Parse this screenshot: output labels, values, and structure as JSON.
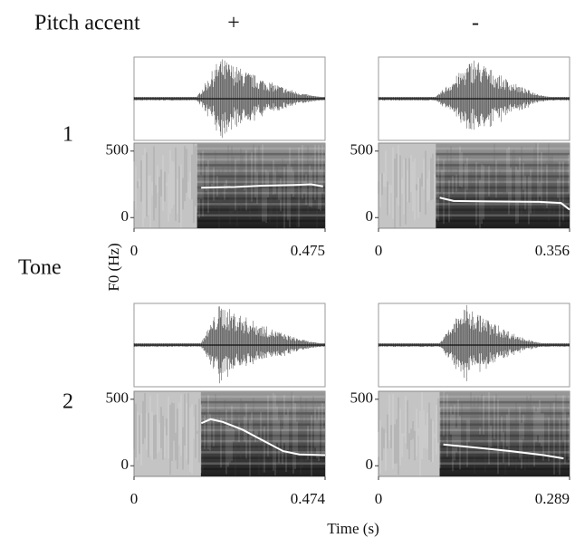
{
  "figure": {
    "column_header": "Pitch accent",
    "columns": [
      "+",
      "-"
    ],
    "row_header": "Tone",
    "rows": [
      "1",
      "2"
    ],
    "ylabel": "F0 (Hz)",
    "xlabel": "Time (s)"
  },
  "chart_data": [
    {
      "type": "line",
      "x": [
        0.167,
        0.25,
        0.32,
        0.4,
        0.44,
        0.47
      ],
      "values": [
        225,
        230,
        240,
        245,
        250,
        235
      ],
      "color": "#ffffff",
      "xlim": [
        0,
        0.475
      ],
      "xticks": [
        0,
        0.475
      ],
      "ylim": [
        -80,
        560
      ],
      "yticks": [
        0,
        500
      ]
    },
    {
      "type": "line",
      "x": [
        0.114,
        0.14,
        0.2,
        0.3,
        0.34,
        0.356
      ],
      "values": [
        150,
        125,
        122,
        118,
        110,
        60
      ],
      "color": "#ffffff",
      "xlim": [
        0,
        0.356
      ],
      "xticks": [
        0,
        0.356
      ],
      "ylim": [
        -80,
        560
      ],
      "yticks": [
        0,
        500
      ]
    },
    {
      "type": "line",
      "x": [
        0.167,
        0.19,
        0.22,
        0.27,
        0.32,
        0.37,
        0.41,
        0.474
      ],
      "values": [
        320,
        350,
        330,
        270,
        190,
        110,
        85,
        80
      ],
      "color": "#ffffff",
      "xlim": [
        0,
        0.474
      ],
      "xticks": [
        0,
        0.474
      ],
      "ylim": [
        -80,
        560
      ],
      "yticks": [
        0,
        500
      ]
    },
    {
      "type": "line",
      "x": [
        0.098,
        0.15,
        0.2,
        0.25,
        0.28
      ],
      "values": [
        160,
        135,
        110,
        80,
        55
      ],
      "color": "#ffffff",
      "xlim": [
        0,
        0.289
      ],
      "xticks": [
        0,
        0.289
      ],
      "ylim": [
        -80,
        560
      ],
      "yticks": [
        0,
        500
      ]
    }
  ]
}
